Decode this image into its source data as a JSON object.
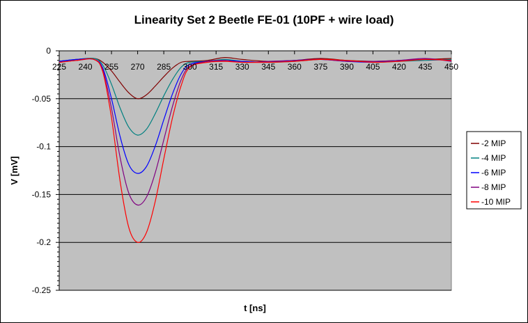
{
  "chart_data": {
    "type": "line",
    "title": "Linearity Set 2 Beetle FE-01 (10PF + wire load)",
    "xlabel": "t [ns]",
    "ylabel": "V [mV]",
    "xlim": [
      225,
      450
    ],
    "ylim": [
      -0.25,
      0
    ],
    "x_ticks": [
      "225",
      "240",
      "255",
      "270",
      "285",
      "300",
      "315",
      "330",
      "345",
      "360",
      "375",
      "390",
      "405",
      "420",
      "435",
      "450"
    ],
    "y_ticks": [
      "0",
      "-0.05",
      "-0.1",
      "-0.15",
      "-0.2",
      "-0.25"
    ],
    "plot_background": "#c0c0c0",
    "grid": "horizontal major lines",
    "legend_position": "right",
    "series": [
      {
        "name": "-2 MIP",
        "color": "#800000",
        "x": [
          225,
          235,
          245,
          250,
          255,
          260,
          265,
          270,
          275,
          280,
          285,
          290,
          295,
          300,
          310,
          320,
          330,
          345,
          360,
          375,
          390,
          405,
          420,
          435,
          450
        ],
        "y": [
          -0.011,
          -0.009,
          -0.008,
          -0.012,
          -0.021,
          -0.033,
          -0.044,
          -0.05,
          -0.046,
          -0.037,
          -0.027,
          -0.018,
          -0.012,
          -0.011,
          -0.01,
          -0.007,
          -0.009,
          -0.011,
          -0.01,
          -0.008,
          -0.01,
          -0.011,
          -0.01,
          -0.009,
          -0.008
        ]
      },
      {
        "name": "-4 MIP",
        "color": "#008080",
        "x": [
          225,
          235,
          245,
          250,
          255,
          260,
          265,
          270,
          275,
          280,
          285,
          290,
          295,
          300,
          310,
          320,
          330,
          345,
          360,
          375,
          390,
          405,
          420,
          435,
          450
        ],
        "y": [
          -0.011,
          -0.009,
          -0.008,
          -0.015,
          -0.035,
          -0.06,
          -0.08,
          -0.088,
          -0.082,
          -0.066,
          -0.047,
          -0.03,
          -0.017,
          -0.012,
          -0.011,
          -0.009,
          -0.011,
          -0.012,
          -0.011,
          -0.009,
          -0.01,
          -0.012,
          -0.011,
          -0.01,
          -0.009
        ]
      },
      {
        "name": "-6 MIP",
        "color": "#0000ff",
        "x": [
          225,
          235,
          245,
          250,
          255,
          260,
          265,
          270,
          275,
          280,
          285,
          290,
          295,
          300,
          310,
          320,
          330,
          345,
          360,
          375,
          390,
          405,
          420,
          435,
          450
        ],
        "y": [
          -0.011,
          -0.009,
          -0.009,
          -0.018,
          -0.05,
          -0.09,
          -0.119,
          -0.128,
          -0.121,
          -0.1,
          -0.072,
          -0.045,
          -0.024,
          -0.014,
          -0.011,
          -0.01,
          -0.011,
          -0.012,
          -0.01,
          -0.009,
          -0.011,
          -0.012,
          -0.01,
          -0.009,
          -0.01
        ]
      },
      {
        "name": "-8 MIP",
        "color": "#800080",
        "x": [
          225,
          235,
          245,
          250,
          255,
          260,
          265,
          270,
          275,
          280,
          285,
          290,
          295,
          300,
          310,
          320,
          330,
          345,
          360,
          375,
          390,
          405,
          420,
          435,
          450
        ],
        "y": [
          -0.012,
          -0.01,
          -0.009,
          -0.02,
          -0.06,
          -0.112,
          -0.149,
          -0.161,
          -0.153,
          -0.128,
          -0.093,
          -0.058,
          -0.03,
          -0.016,
          -0.011,
          -0.01,
          -0.012,
          -0.011,
          -0.01,
          -0.009,
          -0.011,
          -0.011,
          -0.01,
          -0.008,
          -0.011
        ]
      },
      {
        "name": "-10 MIP",
        "color": "#ff0000",
        "x": [
          225,
          235,
          245,
          250,
          255,
          260,
          265,
          270,
          275,
          280,
          285,
          290,
          295,
          300,
          310,
          320,
          330,
          345,
          360,
          375,
          390,
          405,
          420,
          435,
          450
        ],
        "y": [
          -0.012,
          -0.01,
          -0.009,
          -0.022,
          -0.07,
          -0.137,
          -0.185,
          -0.2,
          -0.19,
          -0.158,
          -0.113,
          -0.07,
          -0.036,
          -0.017,
          -0.012,
          -0.011,
          -0.012,
          -0.012,
          -0.011,
          -0.009,
          -0.01,
          -0.012,
          -0.011,
          -0.009,
          -0.01
        ]
      }
    ]
  }
}
